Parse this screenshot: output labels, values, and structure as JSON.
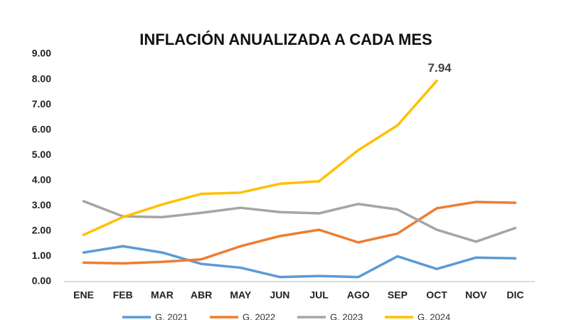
{
  "chart_data": {
    "type": "line",
    "title": "INFLACIÓN ANUALIZADA A CADA MES",
    "categories": [
      "ENE",
      "FEB",
      "MAR",
      "ABR",
      "MAY",
      "JUN",
      "JUL",
      "AGO",
      "SEP",
      "OCT",
      "NOV",
      "DIC"
    ],
    "series": [
      {
        "name": "G. 2021",
        "color": "#5b9bd5",
        "values": [
          1.15,
          1.4,
          1.15,
          0.7,
          0.55,
          0.18,
          0.22,
          0.18,
          1.0,
          0.5,
          0.95,
          0.92
        ]
      },
      {
        "name": "G. 2022",
        "color": "#ed7d31",
        "values": [
          0.75,
          0.72,
          0.78,
          0.88,
          1.4,
          1.8,
          2.05,
          1.55,
          1.9,
          2.9,
          3.15,
          3.12
        ]
      },
      {
        "name": "G. 2023",
        "color": "#a5a5a5",
        "values": [
          3.18,
          2.58,
          2.55,
          2.72,
          2.92,
          2.75,
          2.7,
          3.07,
          2.85,
          2.05,
          1.58,
          2.12
        ]
      },
      {
        "name": "G. 2024",
        "color": "#ffc000",
        "values": [
          1.85,
          2.55,
          3.05,
          3.47,
          3.52,
          3.87,
          3.97,
          5.2,
          6.18,
          7.94,
          null,
          null
        ]
      }
    ],
    "ylim": [
      0,
      9
    ],
    "yticks": [
      {
        "value": 0,
        "label": "0.00"
      },
      {
        "value": 1,
        "label": "1.00"
      },
      {
        "value": 2,
        "label": "2.00"
      },
      {
        "value": 3,
        "label": "3.00"
      },
      {
        "value": 4,
        "label": "4.00"
      },
      {
        "value": 5,
        "label": "5.00"
      },
      {
        "value": 6,
        "label": "6.00"
      },
      {
        "value": 7,
        "label": "7.00"
      },
      {
        "value": 8,
        "label": "8.00"
      },
      {
        "value": 9,
        "label": "9.00"
      }
    ],
    "grid": false,
    "legend": "bottom"
  }
}
